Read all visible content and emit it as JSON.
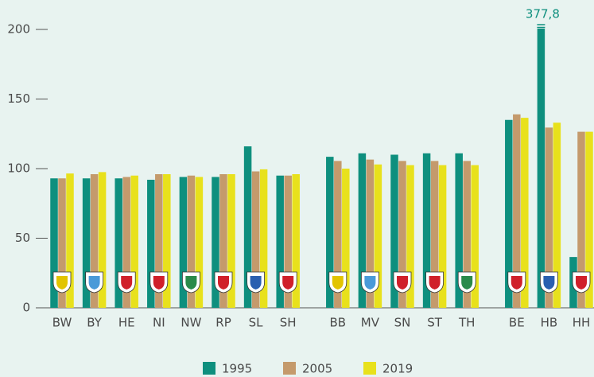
{
  "chart_data": {
    "type": "bar",
    "categories": [
      "BW",
      "BY",
      "HE",
      "NI",
      "NW",
      "RP",
      "SL",
      "SH",
      "BB",
      "MV",
      "SN",
      "ST",
      "TH",
      "BE",
      "HB",
      "HH"
    ],
    "series": [
      {
        "name": "1995",
        "color": "#0e8f7e",
        "values": [
          93,
          93,
          93,
          92,
          94,
          94,
          116,
          95,
          108.5,
          111,
          110,
          111,
          111,
          135,
          377.8,
          36.5
        ],
        "value_labels": [
          null,
          null,
          null,
          null,
          null,
          null,
          null,
          null,
          null,
          null,
          null,
          null,
          null,
          null,
          "377,8",
          null
        ]
      },
      {
        "name": "2005",
        "color": "#c49a6c",
        "values": [
          93,
          96,
          94,
          96,
          95,
          96,
          98,
          95,
          105.5,
          106.5,
          105.5,
          105.5,
          105.5,
          139,
          129.5,
          126.5
        ]
      },
      {
        "name": "2019",
        "color": "#e8e11c",
        "values": [
          96.5,
          97.5,
          95,
          96,
          94,
          96,
          99.5,
          96,
          100,
          103,
          102.5,
          102.5,
          102.5,
          136.5,
          133,
          126.5
        ]
      }
    ],
    "ylim": [
      0,
      200
    ],
    "yticks": [
      0,
      50,
      100,
      150,
      200
    ]
  }
}
